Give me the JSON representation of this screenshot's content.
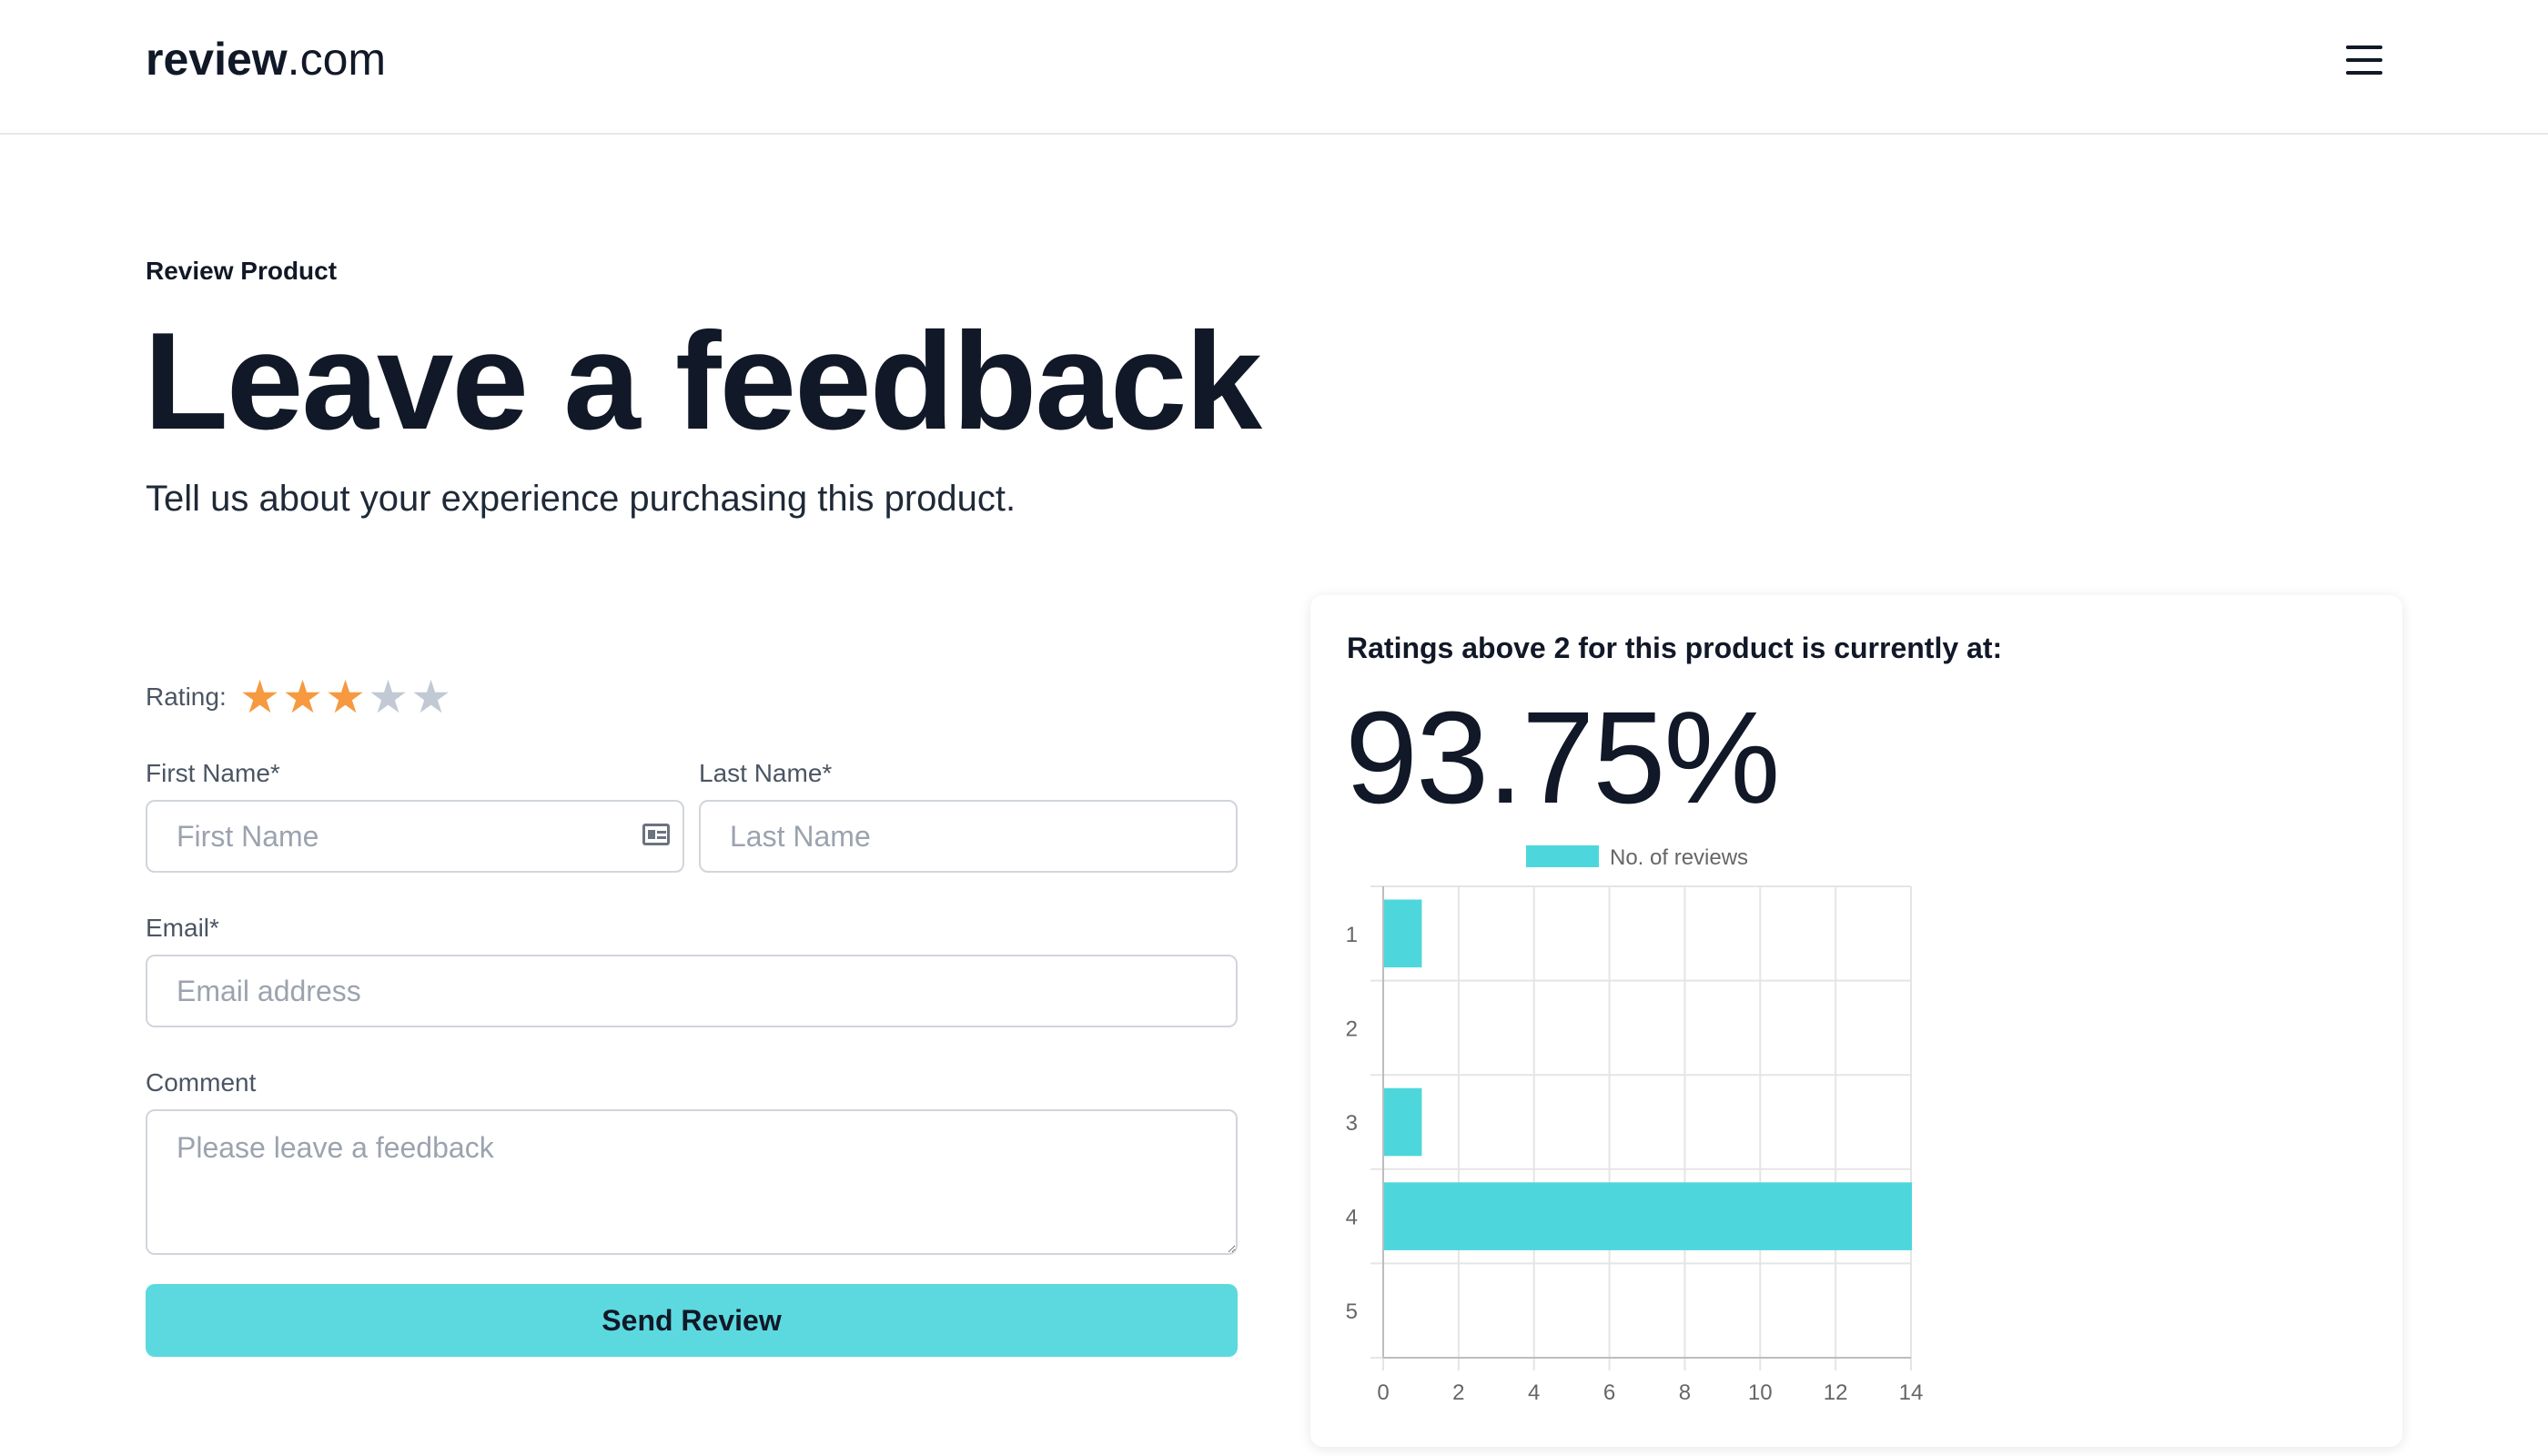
{
  "header": {
    "logo_bold": "review",
    "logo_light": ".com",
    "menu_icon": "hamburger-menu-icon"
  },
  "hero": {
    "eyebrow": "Review Product",
    "title": "Leave a feedback",
    "subtitle": "Tell us about your experience purchasing this product."
  },
  "form": {
    "rating_label": "Rating:",
    "rating_value": 3,
    "rating_max": 5,
    "star_filled_color": "#f6993f",
    "star_empty_color": "#c1c9d4",
    "first_name_label": "First Name*",
    "first_name_placeholder": "First Name",
    "first_name_value": "",
    "last_name_label": "Last Name*",
    "last_name_placeholder": "Last Name",
    "last_name_value": "",
    "email_label": "Email*",
    "email_placeholder": "Email address",
    "email_value": "",
    "comment_label": "Comment",
    "comment_placeholder": "Please leave a feedback",
    "comment_value": "",
    "submit_label": "Send Review",
    "submit_color": "#5cd9df"
  },
  "stats": {
    "heading": "Ratings above 2 for this product is currently at:",
    "percent": "93.75%"
  },
  "chart_data": {
    "type": "bar",
    "orientation": "horizontal",
    "categories": [
      "1",
      "2",
      "3",
      "4",
      "5"
    ],
    "series": [
      {
        "name": "No. of reviews",
        "values": [
          1,
          0,
          1,
          14,
          0
        ],
        "color": "#4dd7dc"
      }
    ],
    "xlim": [
      0,
      14
    ],
    "xticks": [
      0,
      2,
      4,
      6,
      8,
      10,
      12,
      14
    ],
    "grid": true,
    "legend": "top-center"
  }
}
